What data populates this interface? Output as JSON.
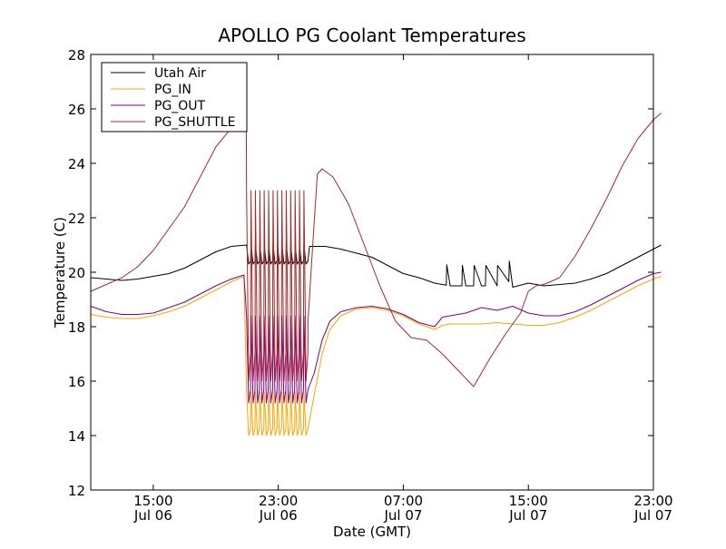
{
  "chart_data": {
    "type": "line",
    "title": "APOLLO PG Coolant Temperatures",
    "xlabel": "Date (GMT)",
    "ylabel": "Temperature (C)",
    "ylim": [
      12,
      28
    ],
    "xlim_hours": [
      11,
      47
    ],
    "x_unit": "hours since Jul 06 00:00 GMT",
    "yticks": [
      12,
      14,
      16,
      18,
      20,
      22,
      24,
      26,
      28
    ],
    "xticks": [
      {
        "hour": 15,
        "time": "15:00",
        "date": "Jul 06"
      },
      {
        "hour": 23,
        "time": "23:00",
        "date": "Jul 06"
      },
      {
        "hour": 31,
        "time": "07:00",
        "date": "Jul 07"
      },
      {
        "hour": 39,
        "time": "15:00",
        "date": "Jul 07"
      },
      {
        "hour": 47,
        "time": "23:00",
        "date": "Jul 07"
      }
    ],
    "legend": {
      "position": "top-left",
      "entries": [
        {
          "name": "Utah Air",
          "color": "#000000"
        },
        {
          "name": "PG_IN",
          "color": "#ffa500"
        },
        {
          "name": "PG_OUT",
          "color": "#800080"
        },
        {
          "name": "PG_SHUTTLE",
          "color": "#a52a2a"
        }
      ]
    },
    "series": [
      {
        "name": "Utah Air",
        "color": "#000000",
        "points": [
          [
            11,
            19.8
          ],
          [
            12,
            19.75
          ],
          [
            13,
            19.7
          ],
          [
            14,
            19.75
          ],
          [
            15,
            19.85
          ],
          [
            16,
            19.95
          ],
          [
            17,
            20.15
          ],
          [
            18,
            20.45
          ],
          [
            19,
            20.75
          ],
          [
            20,
            20.95
          ],
          [
            21,
            21.0
          ],
          [
            22,
            20.95
          ],
          [
            23,
            20.95
          ],
          [
            24,
            20.95
          ],
          [
            25,
            20.95
          ],
          [
            26,
            20.95
          ],
          [
            27,
            20.85
          ],
          [
            28,
            20.7
          ],
          [
            29,
            20.55
          ],
          [
            30,
            20.25
          ],
          [
            31,
            19.95
          ],
          [
            32,
            19.8
          ],
          [
            33,
            19.6
          ],
          [
            34,
            19.5
          ],
          [
            35,
            19.5
          ],
          [
            36,
            19.5
          ],
          [
            37,
            19.5
          ],
          [
            38,
            19.45
          ],
          [
            39,
            19.6
          ],
          [
            40,
            19.5
          ],
          [
            41,
            19.55
          ],
          [
            42,
            19.6
          ],
          [
            43,
            19.75
          ],
          [
            44,
            19.95
          ],
          [
            45,
            20.25
          ],
          [
            46,
            20.55
          ],
          [
            47,
            20.85
          ],
          [
            47.5,
            21.0
          ]
        ],
        "cycling": {
          "start": 20.95,
          "end": 24.9,
          "cycles": 14,
          "low": 20.3,
          "high": 21.0
        },
        "sawtooth": {
          "teeth": [
            33.75,
            34.75,
            35.5,
            36.25,
            37.0,
            37.75
          ],
          "jump": 0.75
        }
      },
      {
        "name": "PG_IN",
        "color": "#ffa500",
        "points": [
          [
            11,
            18.45
          ],
          [
            12,
            18.35
          ],
          [
            13,
            18.3
          ],
          [
            14,
            18.3
          ],
          [
            15,
            18.4
          ],
          [
            16,
            18.55
          ],
          [
            17,
            18.75
          ],
          [
            18,
            19.05
          ],
          [
            19,
            19.35
          ],
          [
            20,
            19.65
          ],
          [
            20.8,
            19.85
          ],
          [
            24.8,
            14.0
          ],
          [
            25.3,
            15.5
          ],
          [
            25.8,
            17.0
          ],
          [
            26.3,
            17.9
          ],
          [
            27,
            18.4
          ],
          [
            28,
            18.65
          ],
          [
            29,
            18.7
          ],
          [
            30,
            18.6
          ],
          [
            31,
            18.4
          ],
          [
            32,
            18.1
          ],
          [
            33,
            17.9
          ],
          [
            33.5,
            18.05
          ],
          [
            34,
            18.1
          ],
          [
            35,
            18.1
          ],
          [
            36,
            18.1
          ],
          [
            37,
            18.15
          ],
          [
            38,
            18.1
          ],
          [
            39,
            18.05
          ],
          [
            40,
            18.05
          ],
          [
            41,
            18.15
          ],
          [
            42,
            18.35
          ],
          [
            43,
            18.6
          ],
          [
            44,
            18.9
          ],
          [
            45,
            19.2
          ],
          [
            46,
            19.5
          ],
          [
            47,
            19.75
          ],
          [
            47.5,
            19.85
          ]
        ],
        "cycling": {
          "start": 20.95,
          "end": 24.9,
          "cycles": 14,
          "low": 14.0,
          "high": 15.6
        }
      },
      {
        "name": "PG_OUT",
        "color": "#800080",
        "points": [
          [
            11,
            18.75
          ],
          [
            12,
            18.55
          ],
          [
            13,
            18.45
          ],
          [
            14,
            18.45
          ],
          [
            15,
            18.5
          ],
          [
            16,
            18.7
          ],
          [
            17,
            18.9
          ],
          [
            18,
            19.2
          ],
          [
            19,
            19.5
          ],
          [
            20,
            19.75
          ],
          [
            20.8,
            19.9
          ],
          [
            24.8,
            15.2
          ],
          [
            25.3,
            16.3
          ],
          [
            25.8,
            17.5
          ],
          [
            26.3,
            18.2
          ],
          [
            27,
            18.55
          ],
          [
            28,
            18.7
          ],
          [
            29,
            18.75
          ],
          [
            30,
            18.65
          ],
          [
            31,
            18.45
          ],
          [
            32,
            18.15
          ],
          [
            33,
            18.0
          ],
          [
            33.5,
            18.35
          ],
          [
            34,
            18.4
          ],
          [
            35,
            18.5
          ],
          [
            36,
            18.7
          ],
          [
            37,
            18.6
          ],
          [
            38,
            18.75
          ],
          [
            39,
            18.5
          ],
          [
            40,
            18.4
          ],
          [
            41,
            18.4
          ],
          [
            42,
            18.55
          ],
          [
            43,
            18.8
          ],
          [
            44,
            19.1
          ],
          [
            45,
            19.4
          ],
          [
            46,
            19.7
          ],
          [
            47,
            19.95
          ],
          [
            47.5,
            20.0
          ]
        ],
        "cycling": {
          "start": 20.95,
          "end": 24.9,
          "cycles": 14,
          "low": 15.2,
          "high": 18.4
        }
      },
      {
        "name": "PG_SHUTTLE",
        "color": "#a52a2a",
        "points": [
          [
            11,
            19.3
          ],
          [
            12,
            19.55
          ],
          [
            13,
            19.8
          ],
          [
            14,
            20.2
          ],
          [
            15,
            20.8
          ],
          [
            16,
            21.6
          ],
          [
            17,
            22.4
          ],
          [
            18,
            23.5
          ],
          [
            19,
            24.6
          ],
          [
            20,
            25.3
          ],
          [
            20.8,
            25.5
          ],
          [
            20.95,
            25.5
          ],
          [
            24.9,
            18.2
          ],
          [
            25.2,
            21.0
          ],
          [
            25.5,
            23.6
          ],
          [
            25.8,
            23.8
          ],
          [
            26.5,
            23.5
          ],
          [
            27.5,
            22.5
          ],
          [
            28.5,
            21.0
          ],
          [
            29.5,
            19.5
          ],
          [
            30.5,
            18.2
          ],
          [
            31.5,
            17.6
          ],
          [
            32.5,
            17.5
          ],
          [
            33.5,
            17.0
          ],
          [
            34.5,
            16.4
          ],
          [
            35.5,
            15.8
          ],
          [
            36.5,
            16.8
          ],
          [
            37.5,
            17.7
          ],
          [
            38.5,
            18.5
          ],
          [
            39.0,
            19.3
          ],
          [
            39.5,
            19.5
          ],
          [
            40,
            19.55
          ],
          [
            41,
            19.8
          ],
          [
            42,
            20.6
          ],
          [
            43,
            21.6
          ],
          [
            44,
            22.7
          ],
          [
            45,
            23.9
          ],
          [
            46,
            24.9
          ],
          [
            47,
            25.6
          ],
          [
            47.5,
            25.85
          ]
        ],
        "cycling": {
          "start": 20.95,
          "end": 24.9,
          "cycles": 14,
          "low": 16.0,
          "high": 23.0
        }
      }
    ]
  }
}
